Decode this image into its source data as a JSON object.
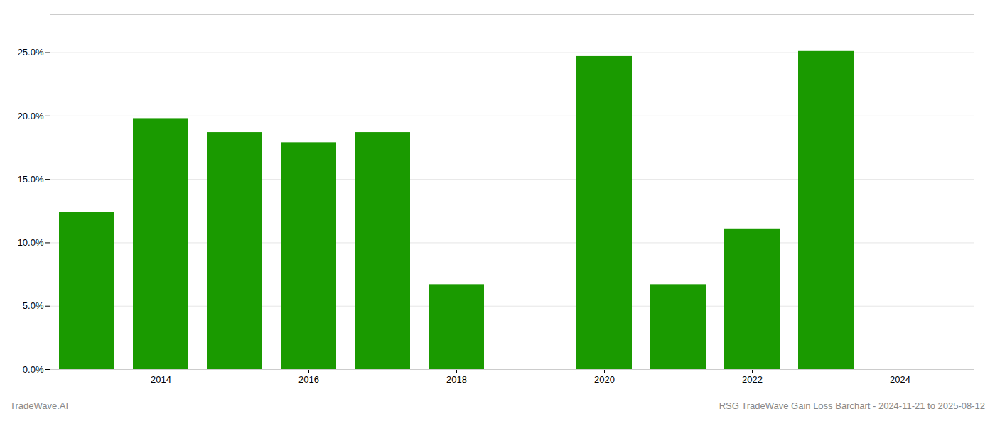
{
  "chart_data": {
    "type": "bar",
    "x": [
      2013,
      2014,
      2015,
      2016,
      2017,
      2018,
      2020,
      2021,
      2022,
      2023
    ],
    "values": [
      0.124,
      0.198,
      0.187,
      0.179,
      0.187,
      0.067,
      0.247,
      0.067,
      0.111,
      0.251
    ],
    "color": "#1a9a00",
    "xlim": [
      2012.5,
      2025.0
    ],
    "xticks": [
      2014,
      2016,
      2018,
      2020,
      2022,
      2024
    ],
    "ylim": [
      0,
      0.28
    ],
    "yticks": [
      {
        "value": 0.0,
        "label": "0.0%"
      },
      {
        "value": 0.05,
        "label": "5.0%"
      },
      {
        "value": 0.1,
        "label": "10.0%"
      },
      {
        "value": 0.15,
        "label": "15.0%"
      },
      {
        "value": 0.2,
        "label": "20.0%"
      },
      {
        "value": 0.25,
        "label": "25.0%"
      }
    ],
    "grid": true,
    "annotations": [
      "TradeWave.AI",
      "RSG TradeWave Gain Loss Barchart - 2024-11-21 to 2025-08-12"
    ]
  }
}
